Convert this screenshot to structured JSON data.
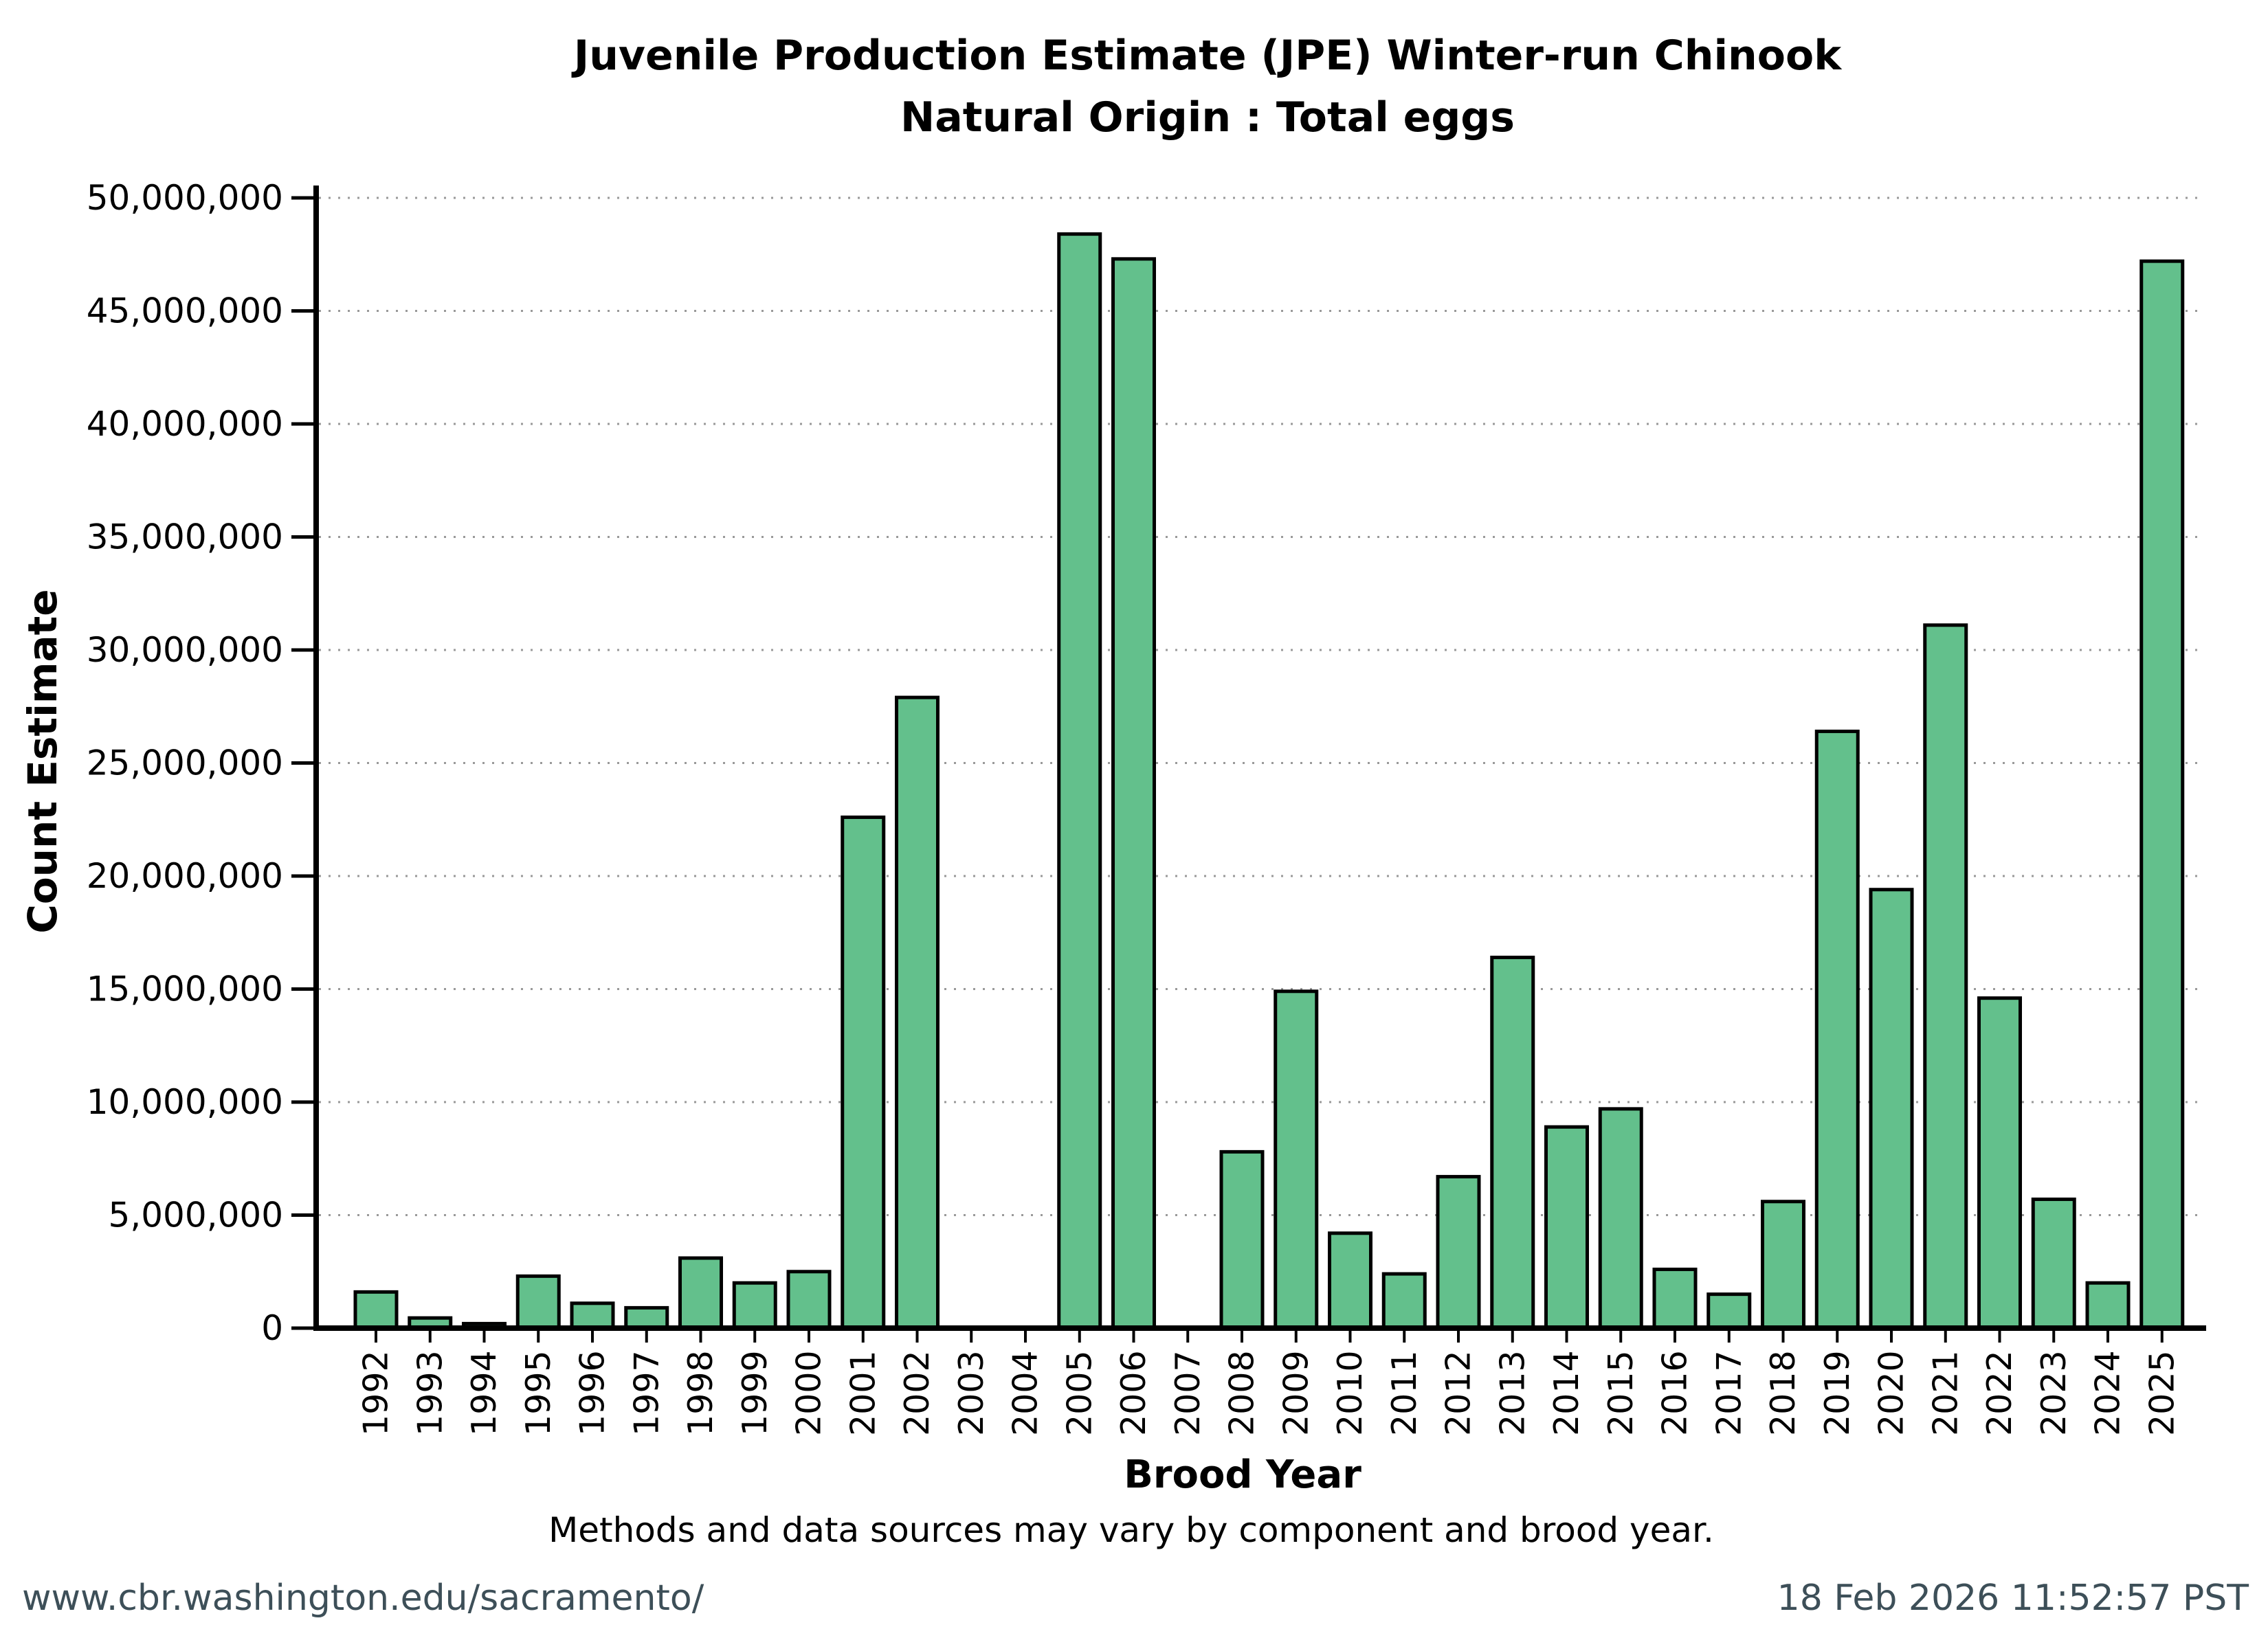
{
  "title": {
    "line1": "Juvenile Production Estimate (JPE) Winter-run Chinook",
    "line2": "Natural Origin : Total eggs"
  },
  "axes": {
    "y_label": "Count Estimate",
    "x_label": "Brood Year",
    "ytick_values": [
      0,
      5000000,
      10000000,
      15000000,
      20000000,
      25000000,
      30000000,
      35000000,
      40000000,
      45000000,
      50000000
    ]
  },
  "note": "Methods and data sources may vary by component and brood year.",
  "footer": {
    "left": "www.cbr.washington.edu/sacramento/",
    "right": "18 Feb 2026 11:52:57 PST"
  },
  "colors": {
    "bar_fill": "#63c08c",
    "bar_stroke": "#000000",
    "axis": "#000000",
    "gridline": "#999999",
    "tick_label": "#000000",
    "footer_text": "#3d4f58"
  },
  "chart_data": {
    "type": "bar",
    "title": "Juvenile Production Estimate (JPE) Winter-run Chinook — Natural Origin : Total eggs",
    "xlabel": "Brood Year",
    "ylabel": "Count Estimate",
    "ylim": [
      0,
      50000000
    ],
    "ytick_interval": 5000000,
    "grid": "horizontal-dotted",
    "legend": "none",
    "categories": [
      "1992",
      "1993",
      "1994",
      "1995",
      "1996",
      "1997",
      "1998",
      "1999",
      "2000",
      "2001",
      "2002",
      "2003",
      "2004",
      "2005",
      "2006",
      "2007",
      "2008",
      "2009",
      "2010",
      "2011",
      "2012",
      "2013",
      "2014",
      "2015",
      "2016",
      "2017",
      "2018",
      "2019",
      "2020",
      "2021",
      "2022",
      "2023",
      "2024",
      "2025"
    ],
    "values": [
      1600000,
      450000,
      200000,
      2300000,
      1100000,
      900000,
      3100000,
      2000000,
      2500000,
      22600000,
      27900000,
      0,
      0,
      48400000,
      47300000,
      0,
      7800000,
      14900000,
      4200000,
      2400000,
      6700000,
      16400000,
      8900000,
      9700000,
      2600000,
      1500000,
      5600000,
      26400000,
      19400000,
      31100000,
      14600000,
      5700000,
      2000000,
      47200000
    ]
  }
}
